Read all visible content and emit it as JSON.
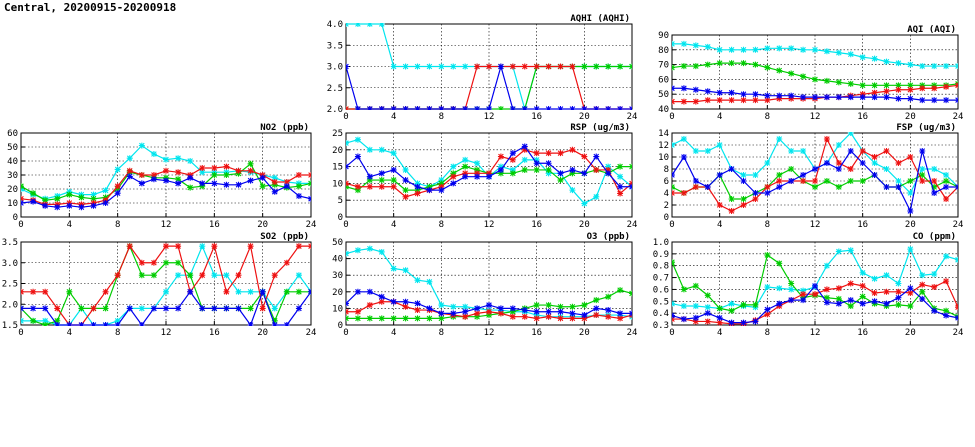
{
  "page_title": "Central, 20200915-20200918",
  "colors": {
    "cyan": "#00e5ee",
    "green": "#00cc00",
    "red": "#ee1111",
    "blue": "#0000ee"
  },
  "chart_data": [
    {
      "id": "aqhi",
      "type": "line",
      "title": "AQHI (AQHI)",
      "xlim": [
        0,
        24
      ],
      "ylim": [
        2,
        4
      ],
      "xticks": [
        0,
        4,
        8,
        12,
        16,
        20,
        24
      ],
      "yticks": [
        "2.0",
        "2.5",
        "3.0",
        "3.5",
        "4.0"
      ],
      "grid": true,
      "series": [
        {
          "color": "cyan",
          "values": [
            4,
            4,
            4,
            4,
            3,
            3,
            3,
            3,
            3,
            3,
            3,
            3,
            3,
            3,
            3,
            2,
            3,
            3,
            3,
            3,
            3,
            3,
            3,
            3,
            3
          ]
        },
        {
          "color": "green",
          "values": [
            2,
            2,
            2,
            2,
            2,
            2,
            2,
            2,
            2,
            2,
            2,
            2,
            2,
            2,
            2,
            2,
            3,
            3,
            3,
            3,
            3,
            3,
            3,
            3,
            3
          ]
        },
        {
          "color": "red",
          "values": [
            2,
            2,
            2,
            2,
            2,
            2,
            2,
            2,
            2,
            2,
            2,
            3,
            3,
            3,
            3,
            3,
            3,
            3,
            3,
            3,
            2,
            2,
            2,
            2,
            2
          ]
        },
        {
          "color": "blue",
          "values": [
            3,
            2,
            2,
            2,
            2,
            2,
            2,
            2,
            2,
            2,
            2,
            2,
            2,
            3,
            2,
            2,
            2,
            2,
            2,
            2,
            2,
            2,
            2,
            2,
            2
          ]
        }
      ]
    },
    {
      "id": "aqi",
      "type": "line",
      "title": "AQI (AQI)",
      "xlim": [
        0,
        24
      ],
      "ylim": [
        40,
        90
      ],
      "xticks": [
        0,
        4,
        8,
        12,
        16,
        20,
        24
      ],
      "yticks": [
        "40",
        "50",
        "60",
        "70",
        "80",
        "90"
      ],
      "grid": true,
      "series": [
        {
          "color": "cyan",
          "values": [
            84,
            84,
            83,
            82,
            80,
            80,
            80,
            80,
            81,
            81,
            81,
            80,
            80,
            79,
            78,
            77,
            75,
            74,
            72,
            71,
            70,
            69,
            69,
            69,
            69
          ]
        },
        {
          "color": "green",
          "values": [
            68,
            69,
            69,
            70,
            71,
            71,
            71,
            70,
            68,
            66,
            64,
            62,
            60,
            59,
            58,
            57,
            56,
            56,
            56,
            56,
            56,
            56,
            56,
            56,
            57
          ]
        },
        {
          "color": "red",
          "values": [
            45,
            45,
            45,
            46,
            46,
            46,
            46,
            46,
            46,
            47,
            47,
            47,
            47,
            48,
            48,
            49,
            50,
            51,
            52,
            53,
            53,
            54,
            54,
            55,
            56
          ]
        },
        {
          "color": "blue",
          "values": [
            54,
            54,
            53,
            52,
            51,
            51,
            50,
            50,
            49,
            49,
            49,
            48,
            48,
            48,
            48,
            48,
            48,
            48,
            48,
            47,
            47,
            46,
            46,
            46,
            46
          ]
        }
      ]
    },
    {
      "id": "no2",
      "type": "line",
      "title": "NO2 (ppb)",
      "xlim": [
        0,
        24
      ],
      "ylim": [
        0,
        60
      ],
      "xticks": [
        0,
        4,
        8,
        12,
        16,
        20,
        24
      ],
      "yticks": [
        "0",
        "10",
        "20",
        "30",
        "40",
        "50",
        "60"
      ],
      "grid": true,
      "series": [
        {
          "color": "cyan",
          "values": [
            20,
            16,
            13,
            15,
            18,
            16,
            16,
            19,
            34,
            42,
            51,
            45,
            41,
            42,
            40,
            32,
            32,
            32,
            33,
            32,
            30,
            28,
            25,
            24,
            24
          ]
        },
        {
          "color": "green",
          "values": [
            22,
            17,
            12,
            13,
            16,
            14,
            13,
            14,
            20,
            32,
            30,
            28,
            28,
            27,
            21,
            22,
            30,
            30,
            31,
            38,
            22,
            23,
            21,
            22,
            24
          ]
        },
        {
          "color": "red",
          "values": [
            13,
            12,
            9,
            9,
            10,
            9,
            10,
            12,
            22,
            33,
            30,
            30,
            33,
            32,
            30,
            35,
            35,
            36,
            33,
            33,
            30,
            25,
            25,
            30,
            30
          ]
        },
        {
          "color": "blue",
          "values": [
            10,
            11,
            8,
            7,
            8,
            7,
            8,
            10,
            17,
            29,
            24,
            27,
            26,
            24,
            28,
            24,
            24,
            23,
            23,
            26,
            28,
            18,
            22,
            15,
            13
          ]
        }
      ]
    },
    {
      "id": "rsp",
      "type": "line",
      "title": "RSP (ug/m3)",
      "xlim": [
        0,
        24
      ],
      "ylim": [
        0,
        25
      ],
      "xticks": [
        0,
        4,
        8,
        12,
        16,
        20,
        24
      ],
      "yticks": [
        "0",
        "5",
        "10",
        "15",
        "20",
        "25"
      ],
      "grid": true,
      "series": [
        {
          "color": "cyan",
          "values": [
            22,
            23,
            20,
            20,
            19,
            14,
            10,
            9,
            11,
            15,
            17,
            16,
            12,
            15,
            14,
            17,
            17,
            13,
            13,
            8,
            4,
            6,
            15,
            12,
            9
          ]
        },
        {
          "color": "green",
          "values": [
            9,
            8,
            11,
            11,
            11,
            8,
            8,
            9,
            10,
            13,
            15,
            14,
            13,
            13,
            13,
            14,
            14,
            14,
            11,
            13,
            13,
            14,
            13,
            15,
            15
          ]
        },
        {
          "color": "red",
          "values": [
            10,
            9,
            9,
            9,
            9,
            6,
            7,
            8,
            9,
            12,
            13,
            13,
            13,
            18,
            17,
            20,
            19,
            19,
            19,
            20,
            18,
            14,
            14,
            7,
            10
          ]
        },
        {
          "color": "blue",
          "values": [
            15,
            18,
            12,
            13,
            14,
            11,
            9,
            8,
            8,
            10,
            12,
            12,
            12,
            14,
            19,
            21,
            16,
            16,
            13,
            14,
            13,
            18,
            13,
            9,
            9
          ]
        }
      ]
    },
    {
      "id": "fsp",
      "type": "line",
      "title": "FSP (ug/m3)",
      "xlim": [
        0,
        24
      ],
      "ylim": [
        0,
        14
      ],
      "xticks": [
        0,
        4,
        8,
        12,
        16,
        20,
        24
      ],
      "yticks": [
        "0",
        "2",
        "4",
        "6",
        "8",
        "10",
        "12",
        "14"
      ],
      "grid": true,
      "series": [
        {
          "color": "cyan",
          "values": [
            12,
            13,
            11,
            11,
            12,
            8,
            7,
            7,
            9,
            13,
            11,
            11,
            8,
            9,
            12,
            14,
            11,
            9,
            8,
            6,
            4,
            8,
            8,
            7,
            5
          ]
        },
        {
          "color": "green",
          "values": [
            5,
            4,
            5,
            5,
            7,
            3,
            3,
            4,
            5,
            7,
            8,
            6,
            5,
            6,
            5,
            6,
            6,
            7,
            5,
            5,
            6,
            7,
            5,
            6,
            5
          ]
        },
        {
          "color": "red",
          "values": [
            4,
            4,
            5,
            5,
            2,
            1,
            2,
            3,
            5,
            6,
            6,
            6,
            6,
            13,
            9,
            8,
            11,
            10,
            11,
            9,
            10,
            6,
            6,
            3,
            5
          ]
        },
        {
          "color": "blue",
          "values": [
            7,
            10,
            6,
            5,
            7,
            8,
            6,
            4,
            4,
            5,
            6,
            7,
            8,
            9,
            8,
            11,
            9,
            7,
            5,
            5,
            1,
            11,
            4,
            5,
            5
          ]
        }
      ]
    },
    {
      "id": "so2",
      "type": "line",
      "title": "SO2 (ppb)",
      "xlim": [
        0,
        24
      ],
      "ylim": [
        1.5,
        3.5
      ],
      "xticks": [
        0,
        4,
        8,
        12,
        16,
        20,
        24
      ],
      "yticks": [
        "1.5",
        "2.0",
        "2.5",
        "3.0",
        "3.5"
      ],
      "grid": true,
      "series": [
        {
          "color": "cyan",
          "values": [
            1.6,
            1.6,
            1.6,
            1.5,
            1.5,
            1.9,
            1.5,
            1.5,
            1.6,
            1.9,
            1.9,
            1.9,
            2.3,
            2.7,
            2.7,
            3.4,
            2.7,
            2.7,
            2.3,
            2.3,
            2.3,
            1.9,
            2.3,
            2.7,
            2.3
          ]
        },
        {
          "color": "green",
          "values": [
            1.9,
            1.6,
            1.5,
            1.6,
            2.3,
            1.9,
            1.9,
            1.9,
            2.7,
            3.4,
            2.7,
            2.7,
            3.0,
            3.0,
            2.7,
            1.9,
            1.9,
            1.9,
            1.9,
            1.9,
            2.3,
            1.6,
            2.3,
            2.3,
            2.3
          ]
        },
        {
          "color": "red",
          "values": [
            2.3,
            2.3,
            2.3,
            1.9,
            1.5,
            1.5,
            1.9,
            2.3,
            2.7,
            3.4,
            3.0,
            3.0,
            3.4,
            3.4,
            2.3,
            2.7,
            3.4,
            2.3,
            2.7,
            3.4,
            1.9,
            2.7,
            3.0,
            3.4,
            3.4
          ]
        },
        {
          "color": "blue",
          "values": [
            1.9,
            1.9,
            1.9,
            1.5,
            1.5,
            1.5,
            1.5,
            1.5,
            1.5,
            1.9,
            1.5,
            1.9,
            1.9,
            1.9,
            2.3,
            1.9,
            1.9,
            1.9,
            1.9,
            1.5,
            2.3,
            1.5,
            1.5,
            1.9,
            2.3
          ]
        }
      ]
    },
    {
      "id": "o3",
      "type": "line",
      "title": "O3 (ppb)",
      "xlim": [
        0,
        24
      ],
      "ylim": [
        0,
        50
      ],
      "xticks": [
        0,
        4,
        8,
        12,
        16,
        20,
        24
      ],
      "yticks": [
        "0",
        "10",
        "20",
        "30",
        "40",
        "50"
      ],
      "grid": true,
      "series": [
        {
          "color": "cyan",
          "values": [
            43,
            45,
            46,
            44,
            34,
            33,
            27,
            26,
            12,
            11,
            11,
            10,
            9,
            9,
            8,
            8,
            6,
            5,
            5,
            5,
            5,
            6,
            6,
            6,
            5
          ]
        },
        {
          "color": "green",
          "values": [
            4,
            4,
            4,
            4,
            4,
            4,
            4,
            4,
            4,
            5,
            5,
            5,
            6,
            7,
            8,
            10,
            12,
            12,
            11,
            11,
            12,
            15,
            17,
            21,
            19
          ]
        },
        {
          "color": "red",
          "values": [
            8,
            8,
            12,
            14,
            14,
            11,
            9,
            9,
            7,
            6,
            5,
            7,
            8,
            7,
            5,
            5,
            4,
            5,
            4,
            4,
            4,
            6,
            5,
            4,
            6
          ]
        },
        {
          "color": "blue",
          "values": [
            13,
            20,
            20,
            17,
            14,
            14,
            13,
            10,
            7,
            7,
            8,
            10,
            12,
            10,
            10,
            9,
            8,
            8,
            8,
            7,
            6,
            10,
            9,
            7,
            7
          ]
        }
      ]
    },
    {
      "id": "co",
      "type": "line",
      "title": "CO (ppm)",
      "xlim": [
        0,
        24
      ],
      "ylim": [
        0.3,
        1.0
      ],
      "xticks": [
        0,
        4,
        8,
        12,
        16,
        20,
        24
      ],
      "yticks": [
        "0.3",
        "0.4",
        "0.5",
        "0.6",
        "0.7",
        "0.8",
        "0.9",
        "1.0"
      ],
      "grid": true,
      "series": [
        {
          "color": "cyan",
          "values": [
            0.48,
            0.46,
            0.46,
            0.45,
            0.44,
            0.48,
            0.46,
            0.45,
            0.62,
            0.61,
            0.6,
            0.59,
            0.62,
            0.8,
            0.92,
            0.93,
            0.74,
            0.69,
            0.72,
            0.65,
            0.94,
            0.72,
            0.73,
            0.88,
            0.85
          ]
        },
        {
          "color": "green",
          "values": [
            0.83,
            0.6,
            0.63,
            0.55,
            0.44,
            0.42,
            0.47,
            0.47,
            0.89,
            0.82,
            0.65,
            0.53,
            0.55,
            0.53,
            0.52,
            0.46,
            0.54,
            0.48,
            0.46,
            0.47,
            0.46,
            0.58,
            0.44,
            0.42,
            0.37
          ]
        },
        {
          "color": "red",
          "values": [
            0.35,
            0.35,
            0.33,
            0.33,
            0.32,
            0.31,
            0.31,
            0.34,
            0.39,
            0.46,
            0.51,
            0.56,
            0.56,
            0.6,
            0.61,
            0.65,
            0.63,
            0.57,
            0.58,
            0.58,
            0.57,
            0.64,
            0.62,
            0.67,
            0.45
          ]
        },
        {
          "color": "blue",
          "values": [
            0.38,
            0.35,
            0.36,
            0.4,
            0.36,
            0.32,
            0.32,
            0.33,
            0.43,
            0.48,
            0.51,
            0.51,
            0.63,
            0.49,
            0.48,
            0.51,
            0.48,
            0.5,
            0.48,
            0.53,
            0.61,
            0.52,
            0.42,
            0.38,
            0.36
          ]
        }
      ]
    }
  ]
}
